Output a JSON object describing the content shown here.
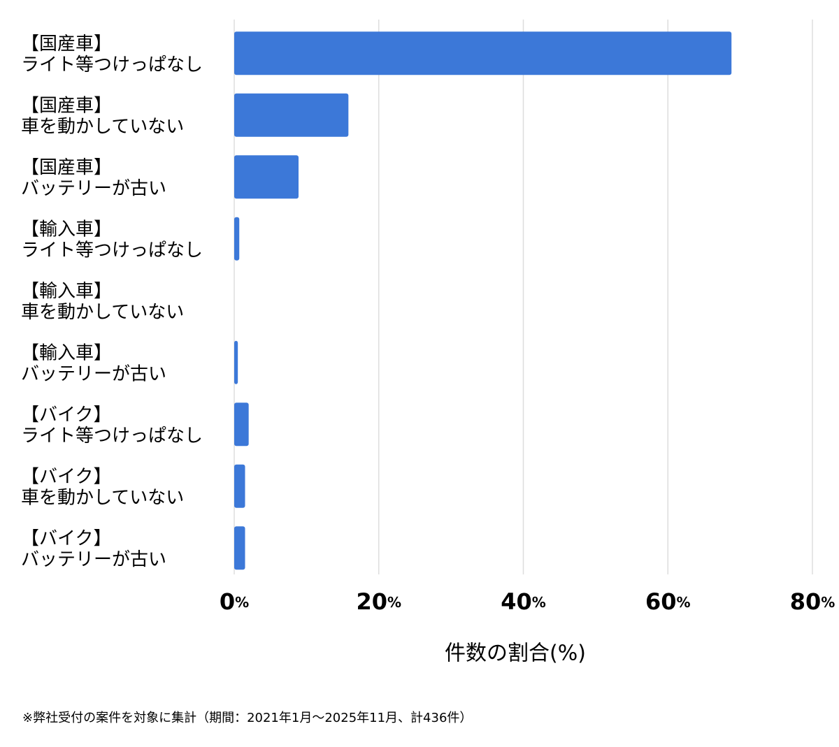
{
  "chart_data": {
    "type": "bar",
    "orientation": "horizontal",
    "categories": [
      [
        "【国産車】",
        "ライト等つけっぱなし"
      ],
      [
        "【国産車】",
        "車を動かしていない"
      ],
      [
        "【国産車】",
        "バッテリーが古い"
      ],
      [
        "【輸入車】",
        "ライト等つけっぱなし"
      ],
      [
        "【輸入車】",
        "車を動かしていない"
      ],
      [
        "【輸入車】",
        "バッテリーが古い"
      ],
      [
        "【バイク】",
        "ライト等つけっぱなし"
      ],
      [
        "【バイク】",
        "車を動かしていない"
      ],
      [
        "【バイク】",
        "バッテリーが古い"
      ]
    ],
    "values": [
      68.8,
      15.8,
      8.9,
      0.7,
      0,
      0.5,
      2.0,
      1.5,
      1.5
    ],
    "color": "#3c78d8",
    "xlim": [
      0,
      80
    ],
    "xticks": [
      {
        "value": 0,
        "label": "0%"
      },
      {
        "value": 20,
        "label": "20%"
      },
      {
        "value": 40,
        "label": "40%"
      },
      {
        "value": 60,
        "label": "60%"
      },
      {
        "value": 80,
        "label": "80%"
      }
    ],
    "grid": true,
    "xlabel": "件数の割合(%)",
    "footnote": "※弊社受付の案件を対象に集計（期間：2021年1月〜2025年11月、計436件）"
  }
}
